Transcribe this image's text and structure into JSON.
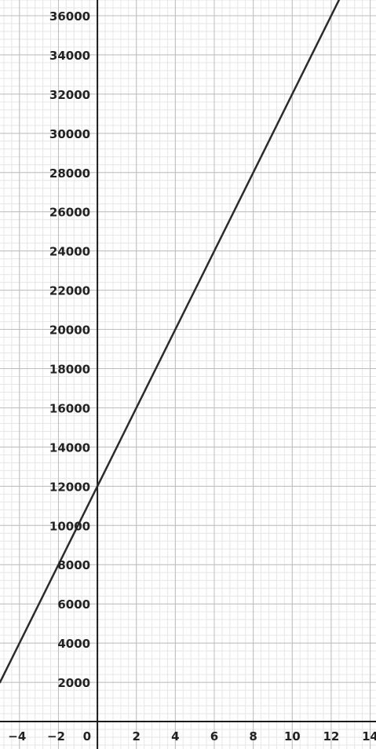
{
  "chart_data": {
    "type": "line",
    "title": "",
    "xlabel": "",
    "ylabel": "",
    "xlim": [
      -5,
      14.3
    ],
    "ylim": [
      -1400,
      36800
    ],
    "grid": true,
    "x_ticks": [
      -4,
      -2,
      0,
      2,
      4,
      6,
      8,
      10,
      12,
      14
    ],
    "x_tick_labels": [
      "−4",
      "−2",
      "0",
      "2",
      "4",
      "6",
      "8",
      "10",
      "12",
      "14"
    ],
    "y_ticks": [
      2000,
      4000,
      6000,
      8000,
      10000,
      12000,
      14000,
      16000,
      18000,
      20000,
      22000,
      24000,
      26000,
      28000,
      30000,
      32000,
      34000,
      36000
    ],
    "y_tick_labels": [
      "2000",
      "4000",
      "6000",
      "8000",
      "10000",
      "12000",
      "14000",
      "16000",
      "18000",
      "20000",
      "22000",
      "24000",
      "26000",
      "28000",
      "30000",
      "32000",
      "34000",
      "36000"
    ],
    "series": [
      {
        "x": [
          -5,
          12.5
        ],
        "y": [
          2000,
          37000
        ],
        "color": "#2b2b2b"
      }
    ],
    "colors": {
      "axis": "#1a1a1a",
      "major_grid": "#bdbdbd",
      "minor_grid": "#e6e6e6"
    }
  }
}
